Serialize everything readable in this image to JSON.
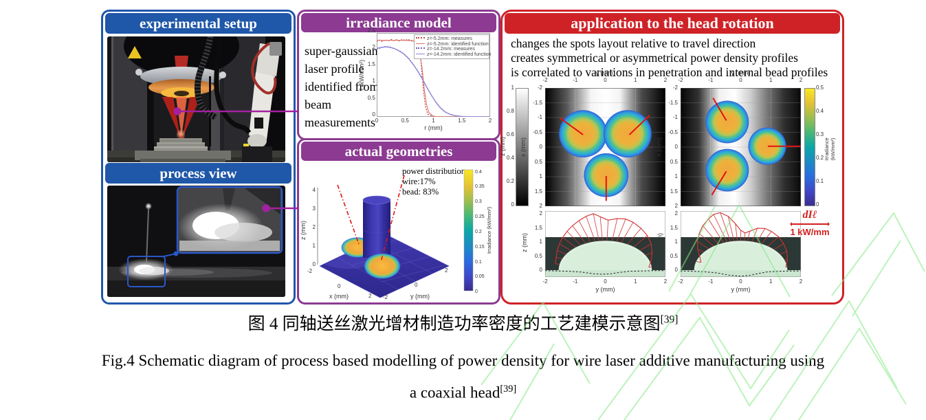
{
  "panels": {
    "experimental": {
      "title": "experimental setup",
      "accent": "#1f57a9"
    },
    "process": {
      "title": "process view"
    },
    "irradiance": {
      "title": "irradiance model",
      "accent": "#8c3a92",
      "note": "super-gaussian laser profile identified from beam measurements"
    },
    "geometries": {
      "title": "actual geometries"
    },
    "application": {
      "title": "application to the head rotation",
      "accent": "#cf2227",
      "bullets": [
        "changes the spots layout relative to travel direction",
        "creates symmetrical or asymmetrical power density profiles",
        "is correlated to variations in penetration and internal bead profiles"
      ],
      "scale_symbol": "dIℓ",
      "scale_value": "1 kW/mm"
    }
  },
  "captions": {
    "zh": "图 4 同轴送丝激光增材制造功率密度的工艺建模示意图",
    "zh_ref": "[39]",
    "en_line1": "Fig.4 Schematic diagram of process based modelling of power density for wire laser additive manufacturing using",
    "en_line2": "a coaxial head",
    "en_ref": "[39]"
  },
  "chart_data": [
    {
      "id": "irradiance_profile",
      "type": "line",
      "xlabel": "r (mm)",
      "ylabel": "I (kW/mm²)",
      "xlim": [
        0,
        2
      ],
      "ylim": [
        0,
        2.5
      ],
      "xticks": [
        "0",
        "0.5",
        "1",
        "1.5",
        "2"
      ],
      "yticks": [
        "0",
        "0.5",
        "1",
        "1.5",
        "2",
        "2.5"
      ],
      "legend_position": "top-right",
      "series": [
        {
          "name": "z=-5.2mm: measures",
          "color": "#b34a42",
          "dash": "1 3",
          "width": 1.3,
          "x": [
            0,
            0.05,
            0.1,
            0.15,
            0.2,
            0.25,
            0.3,
            0.35,
            0.4,
            0.45,
            0.5,
            0.55,
            0.6,
            0.65,
            0.7,
            0.74,
            0.78,
            0.82,
            0.86,
            0.9,
            1.0,
            1.2,
            1.5,
            2.0
          ],
          "y": [
            2.25,
            2.29,
            2.24,
            2.3,
            2.26,
            2.31,
            2.27,
            2.3,
            2.26,
            2.31,
            2.28,
            2.31,
            2.27,
            2.29,
            2.24,
            2.12,
            1.65,
            0.85,
            0.3,
            0.08,
            0.01,
            0,
            0,
            0
          ]
        },
        {
          "name": "z=-5.2mm: identified function",
          "color": "#e0736b",
          "width": 1.1,
          "x": [
            0,
            0.1,
            0.2,
            0.3,
            0.4,
            0.5,
            0.6,
            0.65,
            0.7,
            0.75,
            0.8,
            0.84,
            0.88,
            0.92,
            1.0,
            1.1,
            1.3,
            2.0
          ],
          "y": [
            2.28,
            2.28,
            2.28,
            2.28,
            2.28,
            2.28,
            2.27,
            2.25,
            2.19,
            2.0,
            1.45,
            0.8,
            0.35,
            0.12,
            0.02,
            0,
            0,
            0
          ]
        },
        {
          "name": "z=-14.2mm: measures",
          "color": "#6c5cae",
          "dash": "1 3",
          "width": 1.3,
          "x": [
            0,
            0.08,
            0.16,
            0.24,
            0.32,
            0.4,
            0.48,
            0.56,
            0.64,
            0.72,
            0.8,
            0.88,
            0.96,
            1.04,
            1.12,
            1.2,
            1.3,
            1.4,
            1.5
          ],
          "y": [
            2.02,
            2.06,
            2.1,
            2.08,
            2.03,
            1.97,
            1.88,
            1.75,
            1.58,
            1.38,
            1.15,
            0.9,
            0.65,
            0.45,
            0.28,
            0.16,
            0.07,
            0.03,
            0.01
          ]
        },
        {
          "name": "z=-14.2mm: identified function",
          "color": "#9187d8",
          "width": 1.4,
          "x": [
            0,
            0.08,
            0.16,
            0.24,
            0.32,
            0.4,
            0.48,
            0.56,
            0.64,
            0.72,
            0.8,
            0.88,
            0.96,
            1.04,
            1.12,
            1.2,
            1.3,
            1.4,
            1.5,
            1.7,
            2.0
          ],
          "y": [
            2.04,
            2.07,
            2.09,
            2.07,
            2.03,
            1.96,
            1.87,
            1.74,
            1.57,
            1.37,
            1.14,
            0.89,
            0.66,
            0.44,
            0.27,
            0.15,
            0.07,
            0.03,
            0.01,
            0,
            0
          ]
        }
      ]
    },
    {
      "id": "spot_layout_symmetric",
      "type": "heatmap",
      "xlabel": "y (mm)",
      "ylabel": "x (mm)",
      "xlim": [
        -2,
        2
      ],
      "ylim": [
        -2,
        2
      ],
      "xticks": [
        "-2",
        "-1",
        "0",
        "1",
        "2"
      ],
      "yticks": [
        "-2",
        "-1.5",
        "-1",
        "-0.5",
        "0",
        "0.5",
        "1",
        "1.5",
        "2"
      ],
      "colorbar_left": {
        "label": "z (mm)",
        "ticks": [
          "0",
          "0.2",
          "0.4",
          "0.6",
          "0.8",
          "1"
        ]
      },
      "spots": [
        {
          "y": -0.74,
          "x": -0.45,
          "r": 0.8
        },
        {
          "y": 0.74,
          "x": -0.45,
          "r": 0.8
        },
        {
          "y": 0.03,
          "x": 0.95,
          "r": 0.74
        }
      ],
      "pointer_lines": [
        [
          -1.5,
          -0.98,
          -0.74,
          -0.42
        ],
        [
          1.47,
          -1.07,
          0.8,
          -0.42
        ],
        [
          0.03,
          0.98,
          0.03,
          1.82
        ]
      ]
    },
    {
      "id": "spot_layout_rotated",
      "type": "heatmap",
      "xlabel": "y (mm)",
      "ylabel": "x (mm)",
      "xlim": [
        -2,
        2
      ],
      "ylim": [
        -2,
        2
      ],
      "xticks": [
        "-2",
        "-1",
        "0",
        "1",
        "2"
      ],
      "yticks": [
        "-2",
        "-1.5",
        "-1",
        "-0.5",
        "0",
        "0.5",
        "1",
        "1.5",
        "2"
      ],
      "colorbar_right": {
        "label": "Irradiance (kW/mm²)",
        "ticks": [
          "0",
          "0.1",
          "0.2",
          "0.3",
          "0.4",
          "0.5"
        ]
      },
      "spots": [
        {
          "y": -0.45,
          "x": -0.85,
          "r": 0.72
        },
        {
          "y": -0.45,
          "x": 0.78,
          "r": 0.72
        },
        {
          "y": 0.88,
          "x": -0.03,
          "r": 0.63
        }
      ],
      "pointer_lines": [
        [
          -0.92,
          -1.66,
          -0.48,
          -0.9
        ],
        [
          -0.48,
          0.82,
          -0.96,
          1.62
        ],
        [
          0.9,
          -0.03,
          2.0,
          -0.03
        ]
      ]
    },
    {
      "id": "bead_cross_section_symmetric",
      "type": "area",
      "xlabel": "y (mm)",
      "ylabel": "z (mm)",
      "xlim": [
        -2,
        2
      ],
      "zlim": [
        -0.25,
        2.15
      ],
      "xticks": [
        "-2",
        "-1",
        "0",
        "1",
        "2"
      ],
      "yticks": [
        "0",
        "0.5",
        "1",
        "1.5",
        "2"
      ],
      "bead": {
        "half_width_mm": 1.55,
        "height_mm": 1.07
      },
      "lobe_polar": {
        "angles_deg": [
          4,
          12,
          22,
          32,
          42,
          52,
          62,
          70,
          78,
          87,
          95,
          101,
          108,
          116,
          124,
          132,
          140,
          148,
          156,
          164,
          172
        ],
        "radii_mm": [
          1.45,
          1.55,
          1.68,
          1.8,
          1.88,
          1.93,
          1.97,
          1.98,
          1.92,
          1.82,
          1.95,
          2.09,
          2.06,
          2.0,
          1.95,
          1.9,
          1.85,
          1.8,
          1.75,
          1.7,
          1.68
        ]
      },
      "dilution_line": {
        "y": [
          -2,
          -1.6,
          -1.2,
          -0.8,
          -0.4,
          -0.1,
          0.2,
          0.5,
          0.8,
          1.2,
          1.6,
          2
        ],
        "z": [
          -0.02,
          -0.03,
          -0.04,
          -0.07,
          -0.13,
          -0.15,
          -0.13,
          -0.08,
          -0.04,
          -0.03,
          -0.02,
          -0.02
        ]
      }
    },
    {
      "id": "bead_cross_section_rotated",
      "type": "area",
      "xlabel": "y (mm)",
      "ylabel": "z (mm)",
      "xlim": [
        -2,
        2
      ],
      "zlim": [
        -0.25,
        2.15
      ],
      "xticks": [
        "-2",
        "-1",
        "0",
        "1",
        "2"
      ],
      "yticks": [
        "0",
        "0.5",
        "1",
        "1.5",
        "2"
      ],
      "bead": {
        "half_width_mm": 1.55,
        "height_mm": 1.07
      },
      "lobe_polar": {
        "angles_deg": [
          4,
          14,
          24,
          34,
          44,
          54,
          62,
          70,
          78,
          84,
          90,
          96,
          102,
          108,
          114,
          120,
          128,
          136,
          144,
          152,
          160,
          168
        ],
        "radii_mm": [
          1.5,
          1.6,
          1.68,
          1.72,
          1.75,
          1.74,
          1.72,
          1.62,
          1.45,
          1.36,
          1.45,
          1.7,
          2.0,
          2.2,
          2.22,
          2.15,
          2.05,
          1.92,
          1.78,
          1.62,
          1.45,
          1.35
        ]
      },
      "dilution_line": {
        "y": [
          -2,
          -1.6,
          -1.2,
          -0.8,
          -0.4,
          0,
          0.3,
          0.6,
          0.9,
          1.3,
          1.7,
          2
        ],
        "z": [
          -0.03,
          -0.04,
          -0.06,
          -0.1,
          -0.18,
          -0.22,
          -0.19,
          -0.12,
          -0.06,
          -0.04,
          -0.03,
          -0.03
        ]
      }
    },
    {
      "id": "actual_geometries_surface",
      "type": "surface",
      "xlabel": "x (mm)",
      "ylabel": "y (mm)",
      "zlabel": "z (mm)",
      "xlim": [
        -2,
        2
      ],
      "ylim": [
        -2,
        2
      ],
      "zlim": [
        0,
        4
      ],
      "xticks": [
        "-2",
        "0",
        "2"
      ],
      "yticks": [
        "-2",
        "0",
        "2"
      ],
      "zticks": [
        "0",
        "1",
        "2",
        "3",
        "4"
      ],
      "colorbar": {
        "label": "Irradiance (kW/mm²)",
        "ticks": [
          "0",
          "0.05",
          "0.1",
          "0.15",
          "0.2",
          "0.25",
          "0.3",
          "0.35",
          "0.4"
        ]
      },
      "annotation": [
        "power distribution:",
        "wire:17%",
        "bead: 83%"
      ],
      "power_distribution": {
        "wire": "17%",
        "bead": "83%"
      }
    }
  ]
}
